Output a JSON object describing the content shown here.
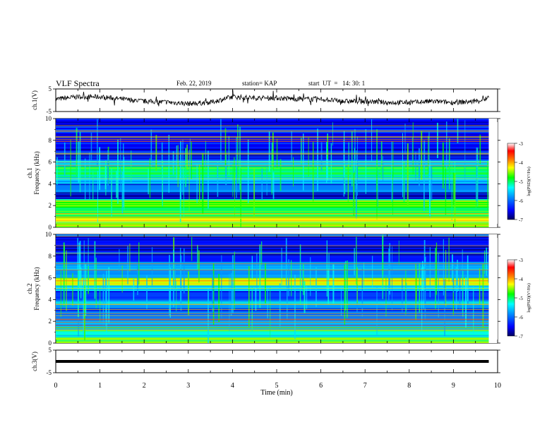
{
  "header": {
    "title": "VLF Spectra",
    "date": "Feb. 22, 2019",
    "station": "station= KAP",
    "start_ut": "start  UT  =   14: 30: 1"
  },
  "colors": {
    "background": "#ffffff",
    "axis": "#000000",
    "waveform": "#000000",
    "colormap": [
      "#000080",
      "#0000ff",
      "#0096ff",
      "#00ffff",
      "#00ff00",
      "#ffff00",
      "#ff8000",
      "#ff0000",
      "#ffffff"
    ]
  },
  "chart_data": [
    {
      "type": "line",
      "panel": "channel-1-waveform",
      "ylabel": "ch.1(V)",
      "ylim": [
        -5,
        5
      ],
      "y_ticks": [
        "5",
        "-5"
      ],
      "xlim": [
        0,
        10
      ],
      "duration_min": 9.8,
      "series": [
        {
          "x": [
            0,
            0.5,
            1,
            1.5,
            2,
            2.5,
            3,
            3.5,
            4,
            4.5,
            5,
            5.5,
            6,
            6.5,
            7,
            7.5,
            8,
            8.5,
            9,
            9.5,
            9.8
          ],
          "values": [
            0.5,
            1.5,
            1.5,
            0.5,
            -0.5,
            -0.8,
            -1.5,
            -1.0,
            1.5,
            1.0,
            1.0,
            0.5,
            0.5,
            -0.5,
            -0.5,
            -1.0,
            -1.0,
            -0.5,
            -1.0,
            -0.5,
            1.0
          ]
        }
      ]
    },
    {
      "type": "heatmap",
      "panel": "channel-1-spectrogram",
      "ylabel": "ch.1\nFrequency (kHz)",
      "ylim": [
        0,
        10
      ],
      "y_ticks": [
        "0",
        "2",
        "4",
        "6",
        "8",
        "10"
      ],
      "xlim": [
        0,
        10
      ],
      "duration_min": 9.8,
      "colorbar": {
        "label": "log(PSD)(V²/Hz)",
        "range": [
          -7,
          -3
        ],
        "ticks": [
          "-3",
          "-4",
          "-5",
          "-6",
          "-7"
        ]
      },
      "bands_khz": [
        {
          "lo": 0.0,
          "hi": 0.5,
          "level": -4.6
        },
        {
          "lo": 0.5,
          "hi": 1.0,
          "level": -4.3
        },
        {
          "lo": 1.0,
          "hi": 1.8,
          "level": -5.0
        },
        {
          "lo": 1.8,
          "hi": 2.6,
          "level": -4.8
        },
        {
          "lo": 2.6,
          "hi": 3.2,
          "level": -6.7
        },
        {
          "lo": 3.2,
          "hi": 4.0,
          "level": -6.0
        },
        {
          "lo": 4.0,
          "hi": 4.6,
          "level": -5.5
        },
        {
          "lo": 4.6,
          "hi": 5.6,
          "level": -5.0
        },
        {
          "lo": 5.6,
          "hi": 6.2,
          "level": -5.8
        },
        {
          "lo": 6.2,
          "hi": 7.0,
          "level": -6.3
        },
        {
          "lo": 7.0,
          "hi": 10.0,
          "level": -6.5
        }
      ]
    },
    {
      "type": "heatmap",
      "panel": "channel-2-spectrogram",
      "ylabel": "ch.2\nFrequency (kHz)",
      "ylim": [
        0,
        10
      ],
      "y_ticks": [
        "0",
        "2",
        "4",
        "6",
        "8",
        "10"
      ],
      "xlim": [
        0,
        10
      ],
      "duration_min": 9.8,
      "colorbar": {
        "label": "log(PSD)(V²/Hz)",
        "range": [
          -7,
          -3
        ],
        "ticks": [
          "-3",
          "-4",
          "-5",
          "-6",
          "-7"
        ]
      },
      "bands_khz": [
        {
          "lo": 0.0,
          "hi": 0.5,
          "level": -4.5
        },
        {
          "lo": 0.5,
          "hi": 1.2,
          "level": -5.2
        },
        {
          "lo": 1.2,
          "hi": 2.2,
          "level": -5.6
        },
        {
          "lo": 2.2,
          "hi": 3.2,
          "level": -6.0
        },
        {
          "lo": 3.2,
          "hi": 4.0,
          "level": -5.7
        },
        {
          "lo": 4.0,
          "hi": 4.8,
          "level": -6.2
        },
        {
          "lo": 4.8,
          "hi": 5.3,
          "level": -5.3
        },
        {
          "lo": 5.3,
          "hi": 6.0,
          "level": -4.4
        },
        {
          "lo": 6.0,
          "hi": 7.5,
          "level": -5.8
        },
        {
          "lo": 7.5,
          "hi": 10.0,
          "level": -6.4
        }
      ]
    },
    {
      "type": "line",
      "panel": "channel-3-waveform",
      "ylabel": "ch.3(V)",
      "ylim": [
        -5,
        5
      ],
      "y_ticks": [
        "5",
        "-5"
      ],
      "xlim": [
        0,
        10
      ],
      "duration_min": 9.8,
      "series": [
        {
          "x": [
            0,
            9.8
          ],
          "values": [
            0,
            0
          ]
        }
      ]
    }
  ],
  "x_axis": {
    "label": "Time  (min)",
    "ticks": [
      "0",
      "1",
      "2",
      "3",
      "4",
      "5",
      "6",
      "7",
      "8",
      "9",
      "10"
    ]
  }
}
